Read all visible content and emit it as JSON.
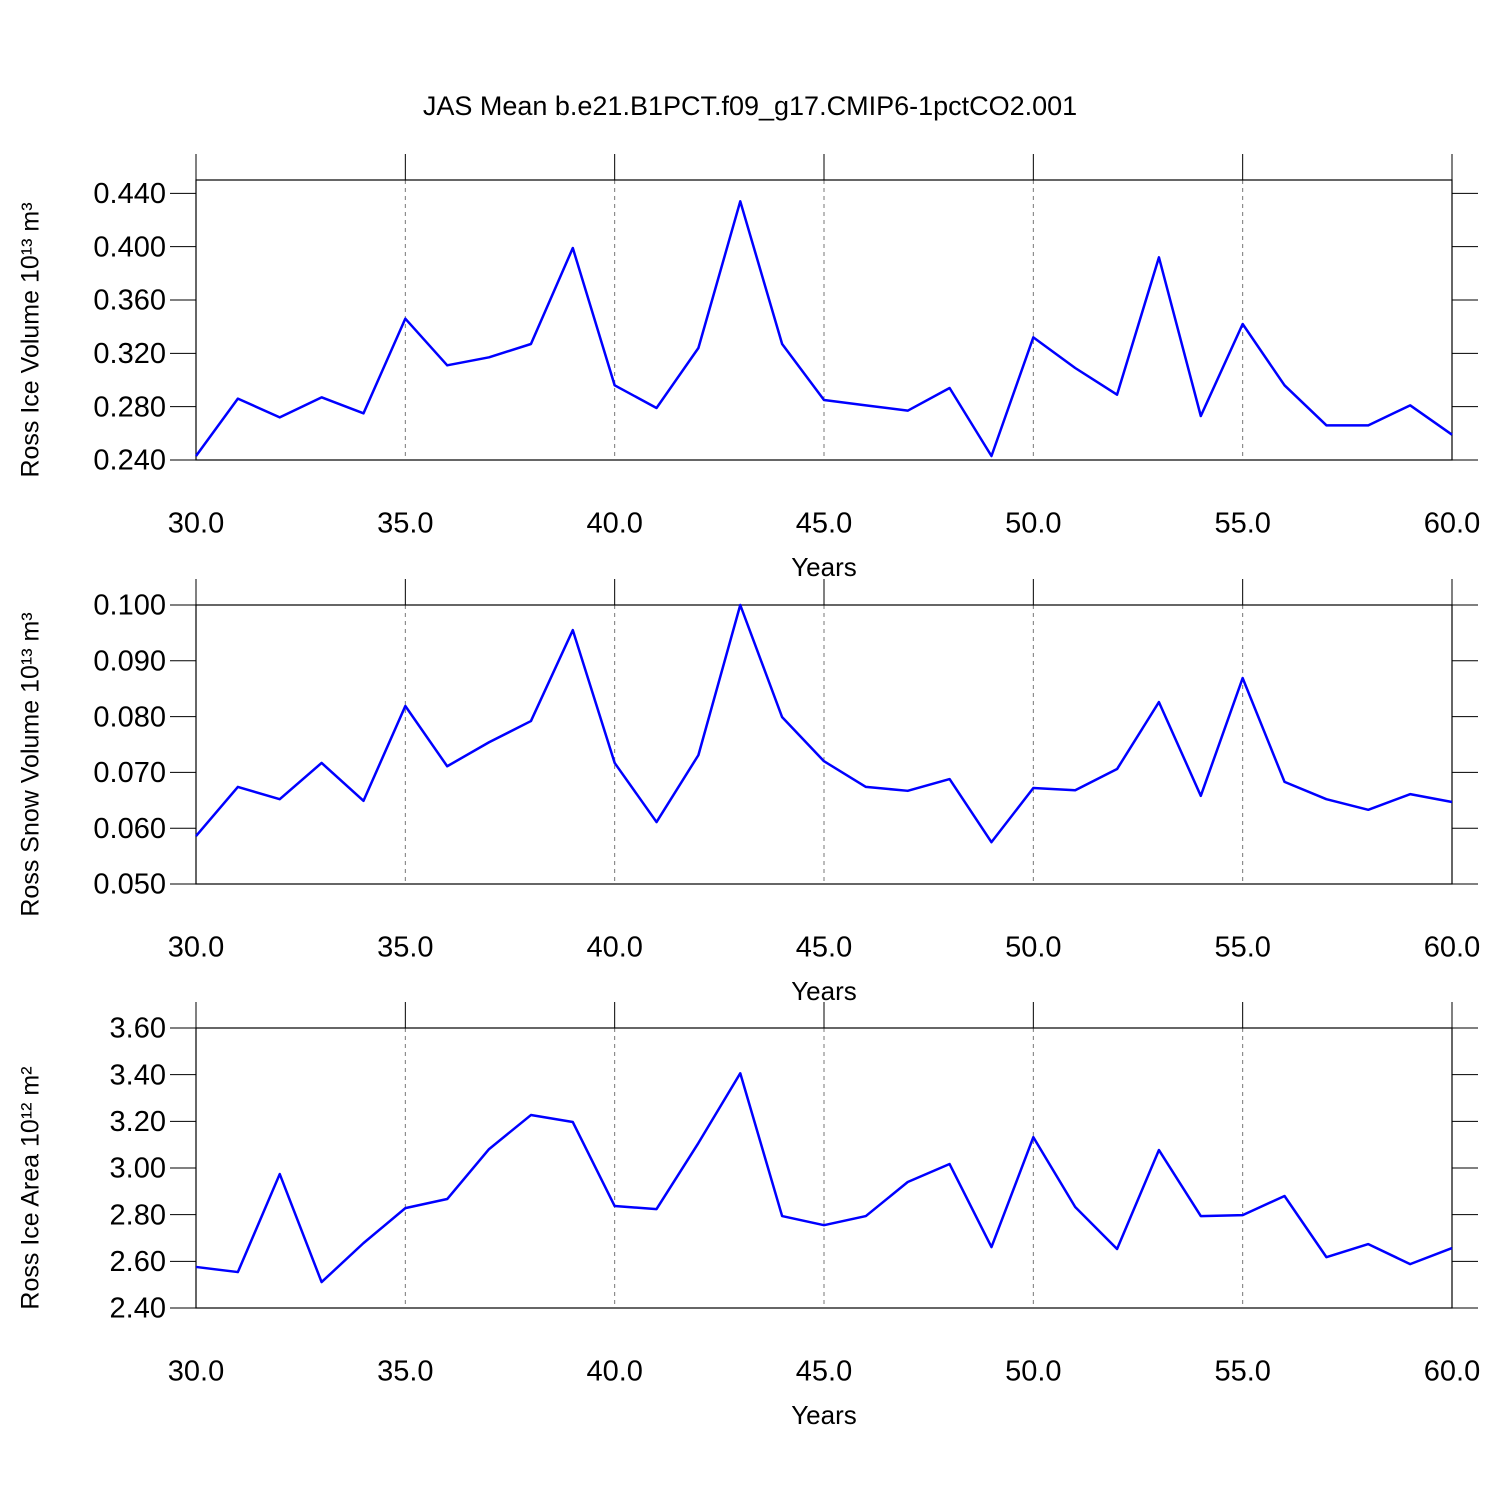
{
  "title": "JAS Mean b.e21.B1PCT.f09_g17.CMIP6-1pctCO2.001",
  "chart_data": [
    {
      "type": "line",
      "x_label": "Years",
      "y_label": "Ross Ice Volume 10¹³ m³",
      "x": [
        30,
        31,
        32,
        33,
        34,
        35,
        36,
        37,
        38,
        39,
        40,
        41,
        42,
        43,
        44,
        45,
        46,
        47,
        48,
        49,
        50,
        51,
        52,
        53,
        54,
        55,
        56,
        57,
        58,
        59,
        60
      ],
      "values": [
        0.243,
        0.286,
        0.272,
        0.287,
        0.275,
        0.346,
        0.311,
        0.317,
        0.327,
        0.399,
        0.296,
        0.279,
        0.324,
        0.434,
        0.327,
        0.285,
        0.281,
        0.277,
        0.294,
        0.243,
        0.332,
        0.309,
        0.289,
        0.392,
        0.273,
        0.342,
        0.296,
        0.266,
        0.266,
        0.281,
        0.259
      ],
      "color": "#0000ff",
      "grid": true,
      "xlim": [
        30,
        60
      ],
      "xticks": [
        {
          "value": 30,
          "label": "30.0"
        },
        {
          "value": 35,
          "label": "35.0"
        },
        {
          "value": 40,
          "label": "40.0"
        },
        {
          "value": 45,
          "label": "45.0"
        },
        {
          "value": 50,
          "label": "50.0"
        },
        {
          "value": 55,
          "label": "55.0"
        },
        {
          "value": 60,
          "label": "60.0"
        }
      ],
      "ylim": [
        0.24,
        0.45
      ],
      "yticks": [
        {
          "value": 0.24,
          "label": "0.240"
        },
        {
          "value": 0.28,
          "label": "0.280"
        },
        {
          "value": 0.32,
          "label": "0.320"
        },
        {
          "value": 0.36,
          "label": "0.360"
        },
        {
          "value": 0.4,
          "label": "0.400"
        },
        {
          "value": 0.44,
          "label": "0.440"
        }
      ]
    },
    {
      "type": "line",
      "x_label": "Years",
      "y_label": "Ross Snow Volume 10¹³ m³",
      "x": [
        30,
        31,
        32,
        33,
        34,
        35,
        36,
        37,
        38,
        39,
        40,
        41,
        42,
        43,
        44,
        45,
        46,
        47,
        48,
        49,
        50,
        51,
        52,
        53,
        54,
        55,
        56,
        57,
        58,
        59,
        60
      ],
      "values": [
        0.0586,
        0.0674,
        0.0652,
        0.0717,
        0.0649,
        0.0819,
        0.0711,
        0.0754,
        0.0792,
        0.0955,
        0.0717,
        0.0611,
        0.0731,
        0.1,
        0.0799,
        0.072,
        0.0674,
        0.0667,
        0.0688,
        0.0575,
        0.0672,
        0.0668,
        0.0706,
        0.0826,
        0.0658,
        0.0869,
        0.0683,
        0.0652,
        0.0633,
        0.0661,
        0.0647
      ],
      "color": "#0000ff",
      "grid": true,
      "xlim": [
        30,
        60
      ],
      "xticks": [
        {
          "value": 30,
          "label": "30.0"
        },
        {
          "value": 35,
          "label": "35.0"
        },
        {
          "value": 40,
          "label": "40.0"
        },
        {
          "value": 45,
          "label": "45.0"
        },
        {
          "value": 50,
          "label": "50.0"
        },
        {
          "value": 55,
          "label": "55.0"
        },
        {
          "value": 60,
          "label": "60.0"
        }
      ],
      "ylim": [
        0.05,
        0.1
      ],
      "yticks": [
        {
          "value": 0.05,
          "label": "0.050"
        },
        {
          "value": 0.06,
          "label": "0.060"
        },
        {
          "value": 0.07,
          "label": "0.070"
        },
        {
          "value": 0.08,
          "label": "0.080"
        },
        {
          "value": 0.09,
          "label": "0.090"
        },
        {
          "value": 0.1,
          "label": "0.100"
        }
      ]
    },
    {
      "type": "line",
      "x_label": "Years",
      "y_label": "Ross Ice Area 10¹² m²",
      "x": [
        30,
        31,
        32,
        33,
        34,
        35,
        36,
        37,
        38,
        39,
        40,
        41,
        42,
        43,
        44,
        45,
        46,
        47,
        48,
        49,
        50,
        51,
        52,
        53,
        54,
        55,
        56,
        57,
        58,
        59,
        60
      ],
      "values": [
        2.576,
        2.554,
        2.974,
        2.511,
        2.678,
        2.828,
        2.867,
        3.081,
        3.227,
        3.197,
        2.837,
        2.824,
        3.107,
        3.406,
        2.794,
        2.755,
        2.794,
        2.94,
        3.017,
        2.661,
        3.132,
        2.833,
        2.653,
        3.077,
        2.794,
        2.798,
        2.88,
        2.618,
        2.674,
        2.588,
        2.657
      ],
      "color": "#0000ff",
      "grid": true,
      "xlim": [
        30,
        60
      ],
      "xticks": [
        {
          "value": 30,
          "label": "30.0"
        },
        {
          "value": 35,
          "label": "35.0"
        },
        {
          "value": 40,
          "label": "40.0"
        },
        {
          "value": 45,
          "label": "45.0"
        },
        {
          "value": 50,
          "label": "50.0"
        },
        {
          "value": 55,
          "label": "55.0"
        },
        {
          "value": 60,
          "label": "60.0"
        }
      ],
      "ylim": [
        2.4,
        3.6
      ],
      "yticks": [
        {
          "value": 2.4,
          "label": "2.40"
        },
        {
          "value": 2.6,
          "label": "2.60"
        },
        {
          "value": 2.8,
          "label": "2.80"
        },
        {
          "value": 3.0,
          "label": "3.00"
        },
        {
          "value": 3.2,
          "label": "3.20"
        },
        {
          "value": 3.4,
          "label": "3.40"
        },
        {
          "value": 3.6,
          "label": "3.60"
        }
      ]
    }
  ]
}
